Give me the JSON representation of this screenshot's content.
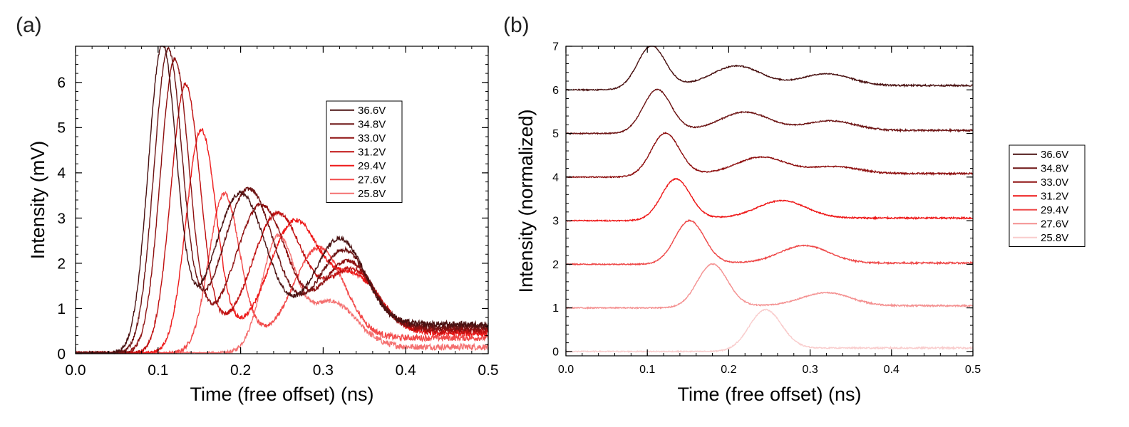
{
  "chart_data": [
    {
      "panel_label": "(a)",
      "type": "line",
      "xlabel": "Time (free offset) (ns)",
      "ylabel": "Intensity (mV)",
      "xlim": [
        0,
        0.5
      ],
      "ylim": [
        0,
        6.8
      ],
      "xticks": [
        "0.0",
        "0.1",
        "0.2",
        "0.3",
        "0.4",
        "0.5"
      ],
      "yticks": [
        "0",
        "1",
        "2",
        "3",
        "4",
        "5",
        "6"
      ],
      "legend_position": "upper-right inside",
      "series": [
        {
          "name": "36.6V",
          "color": "#4a1212",
          "peaks": [
            {
              "x": 0.105,
              "y": 6.75
            },
            {
              "x": 0.2,
              "y": 2.9
            },
            {
              "x": 0.32,
              "y": 1.9
            }
          ],
          "tail": 0.65
        },
        {
          "name": "34.8V",
          "color": "#6d1414",
          "peaks": [
            {
              "x": 0.112,
              "y": 6.65
            },
            {
              "x": 0.21,
              "y": 3.05
            },
            {
              "x": 0.325,
              "y": 1.7
            }
          ],
          "tail": 0.6
        },
        {
          "name": "33.0V",
          "color": "#8e1010",
          "peaks": [
            {
              "x": 0.12,
              "y": 6.45
            },
            {
              "x": 0.225,
              "y": 2.75
            },
            {
              "x": 0.33,
              "y": 1.5
            }
          ],
          "tail": 0.55
        },
        {
          "name": "31.2V",
          "color": "#c01010",
          "peaks": [
            {
              "x": 0.133,
              "y": 5.9
            },
            {
              "x": 0.245,
              "y": 2.6
            },
            {
              "x": 0.335,
              "y": 1.35
            }
          ],
          "tail": 0.5
        },
        {
          "name": "29.4V",
          "color": "#ee1a1a",
          "peaks": [
            {
              "x": 0.152,
              "y": 4.9
            },
            {
              "x": 0.265,
              "y": 2.45
            },
            {
              "x": 0.34,
              "y": 1.2
            }
          ],
          "tail": 0.45
        },
        {
          "name": "27.6V",
          "color": "#f24a4a",
          "peaks": [
            {
              "x": 0.18,
              "y": 3.5
            },
            {
              "x": 0.295,
              "y": 2.0
            }
          ],
          "tail": 0.35
        },
        {
          "name": "25.8V",
          "color": "#f47070",
          "peaks": [
            {
              "x": 0.245,
              "y": 2.5
            },
            {
              "x": 0.31,
              "y": 1.0
            }
          ],
          "tail": 0.15
        }
      ]
    },
    {
      "panel_label": "(b)",
      "type": "line",
      "xlabel": "Time (free offset) (ns)",
      "ylabel": "Intensity (normalized)",
      "xlim": [
        0,
        0.5
      ],
      "ylim": [
        -0.1,
        7
      ],
      "xticks": [
        "0.0",
        "0.1",
        "0.2",
        "0.3",
        "0.4",
        "0.5"
      ],
      "yticks": [
        "0",
        "1",
        "2",
        "3",
        "4",
        "5",
        "6",
        "7"
      ],
      "legend_position": "right outside",
      "series": [
        {
          "name": "36.6V",
          "color": "#4a1212",
          "offset": 6,
          "peaks": [
            {
              "x": 0.105,
              "y": 1.0
            },
            {
              "x": 0.21,
              "y": 0.45
            },
            {
              "x": 0.32,
              "y": 0.27
            }
          ],
          "tail": 0.1
        },
        {
          "name": "34.8V",
          "color": "#6d1414",
          "offset": 5,
          "peaks": [
            {
              "x": 0.112,
              "y": 1.0
            },
            {
              "x": 0.22,
              "y": 0.42
            },
            {
              "x": 0.325,
              "y": 0.22
            }
          ],
          "tail": 0.07
        },
        {
          "name": "33.0V",
          "color": "#8e1010",
          "offset": 4,
          "peaks": [
            {
              "x": 0.122,
              "y": 1.0
            },
            {
              "x": 0.24,
              "y": 0.38
            },
            {
              "x": 0.33,
              "y": 0.16
            }
          ],
          "tail": 0.08
        },
        {
          "name": "31.2V",
          "color": "#ee1515",
          "offset": 3,
          "peaks": [
            {
              "x": 0.135,
              "y": 0.95
            },
            {
              "x": 0.265,
              "y": 0.4
            }
          ],
          "tail": 0.06
        },
        {
          "name": "29.4V",
          "color": "#ee4848",
          "offset": 2,
          "peaks": [
            {
              "x": 0.152,
              "y": 1.0
            },
            {
              "x": 0.293,
              "y": 0.4
            }
          ],
          "tail": 0.03
        },
        {
          "name": "27.6V",
          "color": "#f49090",
          "offset": 1,
          "peaks": [
            {
              "x": 0.18,
              "y": 1.0
            },
            {
              "x": 0.32,
              "y": 0.3
            }
          ],
          "tail": 0.05
        },
        {
          "name": "25.8V",
          "color": "#f9cccc",
          "offset": 0,
          "peaks": [
            {
              "x": 0.245,
              "y": 0.95
            }
          ],
          "tail": 0.08
        }
      ]
    }
  ]
}
